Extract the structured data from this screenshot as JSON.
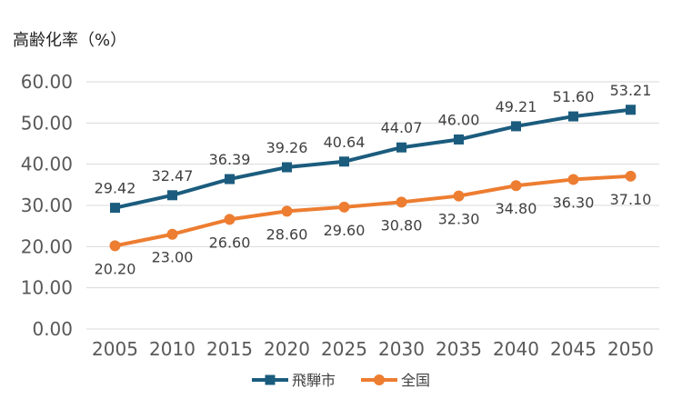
{
  "chart_data": {
    "type": "line",
    "ylabel": "高齢化率（%）",
    "categories": [
      "2005",
      "2010",
      "2015",
      "2020",
      "2025",
      "2030",
      "2035",
      "2040",
      "2045",
      "2050"
    ],
    "ylim": [
      0,
      60
    ],
    "yticks": [
      "0.00",
      "10.00",
      "20.00",
      "30.00",
      "40.00",
      "50.00",
      "60.00"
    ],
    "grid": true,
    "legend": "bottom",
    "series": [
      {
        "name": "飛騨市",
        "color": "#1b5c7e",
        "marker": "square",
        "values": [
          29.42,
          32.47,
          36.39,
          39.26,
          40.64,
          44.07,
          46.0,
          49.21,
          51.6,
          53.21
        ],
        "labels": [
          "29.42",
          "32.47",
          "36.39",
          "39.26",
          "40.64",
          "44.07",
          "46.00",
          "49.21",
          "51.60",
          "53.21"
        ]
      },
      {
        "name": "全国",
        "color": "#ed7d31",
        "marker": "circle",
        "values": [
          20.2,
          23.0,
          26.6,
          28.6,
          29.6,
          30.8,
          32.3,
          34.8,
          36.3,
          37.1
        ],
        "labels": [
          "20.20",
          "23.00",
          "26.60",
          "28.60",
          "29.60",
          "30.80",
          "32.30",
          "34.80",
          "36.30",
          "37.10"
        ]
      }
    ]
  }
}
